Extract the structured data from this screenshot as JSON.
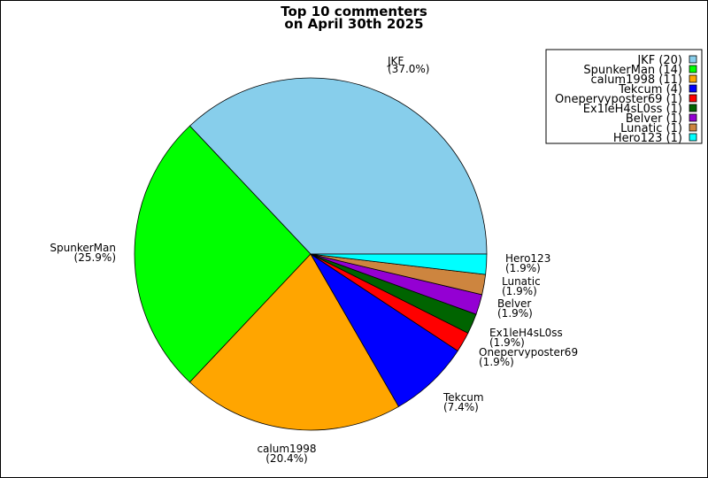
{
  "chart_data": {
    "type": "pie",
    "title": "Top 10 commenters",
    "subtitle": "on April 30th 2025",
    "slices": [
      {
        "label": "JKF",
        "value": 20,
        "percent_label": "(37.0%)",
        "legend": "JKF (20)",
        "color": "#87CEEB"
      },
      {
        "label": "SpunkerMan",
        "value": 14,
        "percent_label": "(25.9%)",
        "legend": "SpunkerMan (14)",
        "color": "#00FF00"
      },
      {
        "label": "calum1998",
        "value": 11,
        "percent_label": "(20.4%)",
        "legend": "calum1998 (11)",
        "color": "#FFA500"
      },
      {
        "label": "Tekcum",
        "value": 4,
        "percent_label": "(7.4%)",
        "legend": "Tekcum (4)",
        "color": "#0000FF"
      },
      {
        "label": "Onepervyposter69",
        "value": 1,
        "percent_label": "(1.9%)",
        "legend": "Onepervyposter69 (1)",
        "color": "#FF0000"
      },
      {
        "label": "Ex1leH4sL0ss",
        "value": 1,
        "percent_label": "(1.9%)",
        "legend": "Ex1leH4sL0ss (1)",
        "color": "#006400"
      },
      {
        "label": "Belver",
        "value": 1,
        "percent_label": "(1.9%)",
        "legend": "Belver (1)",
        "color": "#9400D3"
      },
      {
        "label": "Lunatic",
        "value": 1,
        "percent_label": "(1.9%)",
        "legend": "Lunatic (1)",
        "color": "#CD853F"
      },
      {
        "label": "Hero123",
        "value": 1,
        "percent_label": "(1.9%)",
        "legend": "Hero123 (1)",
        "color": "#00FFFF"
      }
    ],
    "legend_position": "top-right"
  }
}
